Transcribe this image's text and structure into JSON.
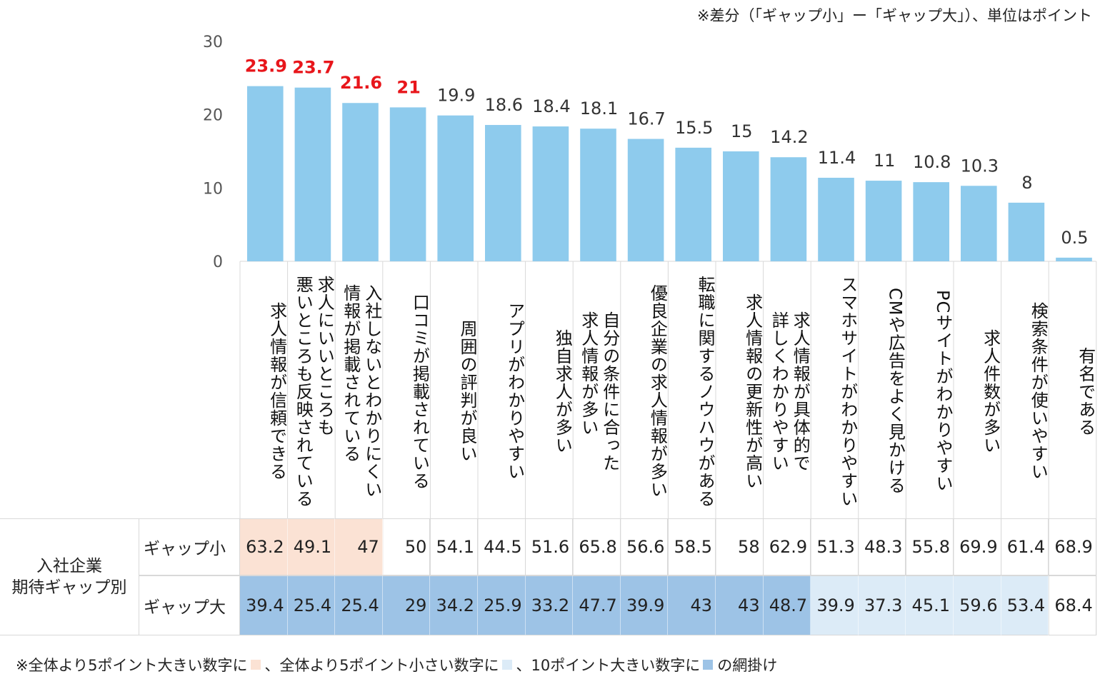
{
  "note_top": "※差分（「ギャップ小」ー「ギャップ大」）、単位はポイント",
  "note_bottom": {
    "part1": "※全体より5ポイント大きい数字に",
    "part2": "、全体より5ポイント小さい数字に",
    "part3": "、10ポイント大きい数字に",
    "part4": "の網掛け"
  },
  "colors": {
    "bar": "#8ecbed",
    "highlight_label": "#e8161b",
    "shade_big5": "#fbe2d4",
    "shade_small5": "#dcebf7",
    "shade_big10": "#9dc3e6",
    "grid": "#d9d9d9"
  },
  "table": {
    "group_label": "入社企業\n期待ギャップ別",
    "rows": [
      {
        "label": "ギャップ小",
        "values": [
          "63.2",
          "49.1",
          "47",
          "50",
          "54.1",
          "44.5",
          "51.6",
          "65.8",
          "56.6",
          "58.5",
          "58",
          "62.9",
          "51.3",
          "48.3",
          "55.8",
          "69.9",
          "61.4",
          "68.9"
        ],
        "shade": [
          "big5",
          "big5",
          "big5",
          "",
          "",
          "",
          "",
          "",
          "",
          "",
          "",
          "",
          "",
          "",
          "",
          "",
          "",
          ""
        ]
      },
      {
        "label": "ギャップ大",
        "values": [
          "39.4",
          "25.4",
          "25.4",
          "29",
          "34.2",
          "25.9",
          "33.2",
          "47.7",
          "39.9",
          "43",
          "43",
          "48.7",
          "39.9",
          "37.3",
          "45.1",
          "59.6",
          "53.4",
          "68.4"
        ],
        "shade": [
          "big10",
          "big10",
          "big10",
          "big10",
          "big10",
          "big10",
          "big10",
          "big10",
          "big10",
          "big10",
          "big10",
          "big10",
          "small5",
          "small5",
          "small5",
          "small5",
          "small5",
          ""
        ]
      }
    ]
  },
  "chart_data": {
    "type": "bar",
    "title": "",
    "xlabel": "",
    "ylabel": "",
    "ylim": [
      0,
      30
    ],
    "yticks": [
      "0",
      "10",
      "20",
      "30"
    ],
    "grid": false,
    "categories": [
      "求人情報が信頼できる",
      "求人にいいところも\n悪いところも反映されている",
      "入社しないとわかりにくい\n情報が掲載されている",
      "口コミが掲載されている",
      "周囲の評判が良い",
      "アプリがわかりやすい",
      "独自求人が多い",
      "自分の条件に合った\n求人情報が多い",
      "優良企業の求人情報が多い",
      "転職に関するノウハウがある",
      "求人情報の更新性が高い",
      "求人情報が具体的で\n詳しくわかりやすい",
      "スマホサイトがわかりやすい",
      "CMや広告をよく見かける",
      "PCサイトがわかりやすい",
      "求人件数が多い",
      "検索条件が使いやすい",
      "有名である"
    ],
    "values": [
      23.9,
      23.7,
      21.6,
      21,
      19.9,
      18.6,
      18.4,
      18.1,
      16.7,
      15.5,
      15,
      14.2,
      11.4,
      11,
      10.8,
      10.3,
      8,
      0.5
    ],
    "value_labels": [
      "23.9",
      "23.7",
      "21.6",
      "21",
      "19.9",
      "18.6",
      "18.4",
      "18.1",
      "16.7",
      "15.5",
      "15",
      "14.2",
      "11.4",
      "11",
      "10.8",
      "10.3",
      "8",
      "0.5"
    ],
    "highlighted": [
      true,
      true,
      true,
      true,
      false,
      false,
      false,
      false,
      false,
      false,
      false,
      false,
      false,
      false,
      false,
      false,
      false,
      false
    ]
  }
}
